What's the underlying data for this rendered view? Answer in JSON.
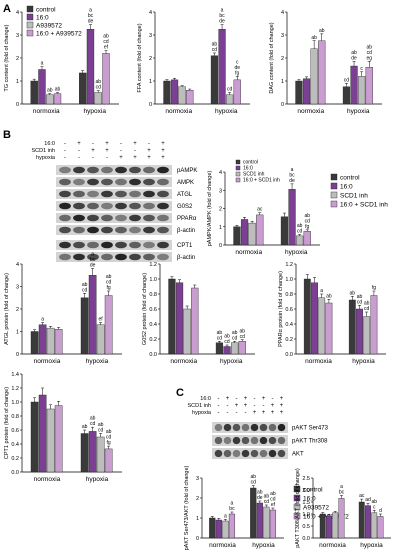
{
  "panels": {
    "a": "A",
    "b": "B",
    "c": "C"
  },
  "colors": {
    "control": "#3a3a3a",
    "palm": "#7b3f93",
    "a939572": "#bdbdbd",
    "combo": "#c99dd0"
  },
  "legend_a": [
    "control",
    "16:0",
    "A939572",
    "16:0 + A939572"
  ],
  "legend_b": [
    "control",
    "16:0",
    "SCD1 inh",
    "16:0 + SCD1 inh"
  ],
  "blot_b": {
    "conditions": [
      {
        "label": "16:0",
        "signs": [
          "-",
          "+",
          "-",
          "+",
          "-",
          "+",
          "-",
          "+"
        ]
      },
      {
        "label": "SCD1 inh",
        "signs": [
          "-",
          "-",
          "+",
          "+",
          "-",
          "-",
          "+",
          "+"
        ]
      },
      {
        "label": "hypoxia",
        "signs": [
          "-",
          "-",
          "-",
          "-",
          "+",
          "+",
          "+",
          "+"
        ]
      }
    ],
    "bands": [
      "pAMPK",
      "AMPK",
      "ATGL",
      "G0S2",
      "PPARα",
      "β-actin",
      "CPT1",
      "β-actin"
    ]
  },
  "blot_c": {
    "conditions": [
      {
        "label": "16:0",
        "signs": [
          "-",
          "+",
          "-",
          "+",
          "-",
          "+",
          "-",
          "+"
        ]
      },
      {
        "label": "SCD1 inh",
        "signs": [
          "-",
          "-",
          "+",
          "+",
          "-",
          "-",
          "+",
          "+"
        ]
      },
      {
        "label": "hypoxia",
        "signs": [
          "-",
          "-",
          "-",
          "-",
          "+",
          "+",
          "+",
          "+"
        ]
      }
    ],
    "bands": [
      "pAKT Ser473",
      "pAKT Thr308",
      "AKT"
    ]
  },
  "chart_data": [
    {
      "id": "tg",
      "type": "bar",
      "categories": [
        "normoxia",
        "hypoxia"
      ],
      "ylabel": "TG content (fold of change)",
      "ylim": [
        0,
        4
      ],
      "yticks": [
        0,
        1,
        2,
        3,
        4
      ],
      "series": [
        {
          "name": "control",
          "values": [
            1.0,
            1.35
          ],
          "err": [
            0.08,
            0.1
          ]
        },
        {
          "name": "16:0",
          "values": [
            1.5,
            3.25
          ],
          "err": [
            0.12,
            0.2
          ]
        },
        {
          "name": "A939572",
          "values": [
            0.4,
            0.5
          ],
          "err": [
            0.05,
            0.08
          ]
        },
        {
          "name": "16:0 + A939572",
          "values": [
            0.45,
            2.2
          ],
          "err": [
            0.05,
            0.12
          ]
        }
      ],
      "annotations": [
        [
          "",
          ""
        ],
        [
          "a",
          "a bc de"
        ],
        [
          "ab",
          "ab cd"
        ],
        [
          "ab",
          "ab cd ef"
        ]
      ]
    },
    {
      "id": "ffa",
      "type": "bar",
      "categories": [
        "normoxia",
        "hypoxia"
      ],
      "ylabel": "FFA content (fold of change)",
      "ylim": [
        0,
        4
      ],
      "yticks": [
        0,
        1,
        2,
        3,
        4
      ],
      "series": [
        {
          "name": "control",
          "values": [
            1.0,
            2.1
          ],
          "err": [
            0.06,
            0.12
          ]
        },
        {
          "name": "16:0",
          "values": [
            1.05,
            3.25
          ],
          "err": [
            0.07,
            0.2
          ]
        },
        {
          "name": "A939572",
          "values": [
            0.75,
            0.4
          ],
          "err": [
            0.05,
            0.1
          ]
        },
        {
          "name": "16:0 + A939572",
          "values": [
            0.6,
            1.05
          ],
          "err": [
            0.05,
            0.15
          ]
        }
      ],
      "annotations": [
        [
          "",
          "ab cd"
        ],
        [
          "",
          "a bc de"
        ],
        [
          "",
          "cd"
        ],
        [
          "",
          "c de fg"
        ]
      ]
    },
    {
      "id": "dag",
      "type": "bar",
      "categories": [
        "normoxia",
        "hypoxia"
      ],
      "ylabel": "DAG content (fold of change)",
      "ylim": [
        0,
        4
      ],
      "yticks": [
        0,
        1,
        2,
        3,
        4
      ],
      "series": [
        {
          "name": "control",
          "values": [
            1.0,
            0.75
          ],
          "err": [
            0.06,
            0.15
          ]
        },
        {
          "name": "16:0",
          "values": [
            1.1,
            1.65
          ],
          "err": [
            0.08,
            0.2
          ]
        },
        {
          "name": "A939572",
          "values": [
            2.4,
            1.2
          ],
          "err": [
            0.35,
            0.2
          ]
        },
        {
          "name": "16:0 + A939572",
          "values": [
            2.75,
            1.6
          ],
          "err": [
            0.3,
            0.25
          ]
        }
      ],
      "annotations": [
        [
          "",
          "cd"
        ],
        [
          "",
          "ab de"
        ],
        [
          "ab",
          "c"
        ],
        [
          "ab",
          "ab cd eg"
        ]
      ]
    },
    {
      "id": "pampk",
      "type": "bar",
      "categories": [
        "normoxia",
        "hypoxia"
      ],
      "ylabel": "pAMPK/AMPK (fold of change)",
      "ylim": [
        0,
        4
      ],
      "yticks": [
        0,
        1,
        2,
        3,
        4
      ],
      "series": [
        {
          "name": "control",
          "values": [
            1.0,
            1.55
          ],
          "err": [
            0.08,
            0.2
          ]
        },
        {
          "name": "16:0",
          "values": [
            1.4,
            3.05
          ],
          "err": [
            0.12,
            0.3
          ]
        },
        {
          "name": "SCD1 inh",
          "values": [
            1.2,
            0.5
          ],
          "err": [
            0.1,
            0.08
          ]
        },
        {
          "name": "16:0 + SCD1 inh",
          "values": [
            1.65,
            0.75
          ],
          "err": [
            0.12,
            0.08
          ]
        }
      ],
      "annotations": [
        [
          "",
          ""
        ],
        [
          "",
          "a bc de"
        ],
        [
          "",
          "ab cd"
        ],
        [
          "ac",
          "ab cd fg"
        ]
      ]
    },
    {
      "id": "atgl",
      "type": "bar",
      "categories": [
        "normoxia",
        "hypoxia"
      ],
      "ylabel": "ATGL protein (fold of change)",
      "ylim": [
        0,
        4
      ],
      "yticks": [
        0,
        1,
        2,
        3,
        4
      ],
      "series": [
        {
          "name": "control",
          "values": [
            1.0,
            2.5
          ],
          "err": [
            0.08,
            0.2
          ]
        },
        {
          "name": "16:0",
          "values": [
            1.3,
            3.5
          ],
          "err": [
            0.1,
            0.3
          ]
        },
        {
          "name": "SCD1 inh",
          "values": [
            1.15,
            1.3
          ],
          "err": [
            0.08,
            0.1
          ]
        },
        {
          "name": "16:0 + SCD1 inh",
          "values": [
            1.1,
            2.6
          ],
          "err": [
            0.08,
            0.2
          ]
        }
      ],
      "annotations": [
        [
          "",
          "ab cd"
        ],
        [
          "a",
          "a bc de"
        ],
        [
          "",
          "ef"
        ],
        [
          "",
          "ab cd fg"
        ]
      ]
    },
    {
      "id": "g0s2",
      "type": "bar",
      "categories": [
        "normoxia",
        "hypoxia"
      ],
      "ylabel": "G0S2 protein (fold of change)",
      "ylim": [
        0,
        1.2
      ],
      "yticks": [
        0,
        0.2,
        0.4,
        0.6,
        0.8,
        1.0,
        1.2
      ],
      "series": [
        {
          "name": "control",
          "values": [
            1.0,
            0.15
          ],
          "err": [
            0.03,
            0.02
          ]
        },
        {
          "name": "16:0",
          "values": [
            0.95,
            0.1
          ],
          "err": [
            0.04,
            0.02
          ]
        },
        {
          "name": "SCD1 inh",
          "values": [
            0.6,
            0.15
          ],
          "err": [
            0.04,
            0.02
          ]
        },
        {
          "name": "16:0 + SCD1 inh",
          "values": [
            0.88,
            0.17
          ],
          "err": [
            0.04,
            0.02
          ]
        }
      ],
      "annotations": [
        [
          "",
          "ab cd"
        ],
        [
          "",
          "ab cd"
        ],
        [
          "",
          "ab cd"
        ],
        [
          "",
          "ab cd"
        ]
      ]
    },
    {
      "id": "ppar",
      "type": "bar",
      "categories": [
        "normoxia",
        "hypoxia"
      ],
      "ylabel": "PPARα protein (fold of change)",
      "ylim": [
        0,
        1.2
      ],
      "yticks": [
        0,
        0.2,
        0.4,
        0.6,
        0.8,
        1.0,
        1.2
      ],
      "series": [
        {
          "name": "control",
          "values": [
            1.0,
            0.72
          ],
          "err": [
            0.06,
            0.05
          ]
        },
        {
          "name": "16:0",
          "values": [
            0.95,
            0.6
          ],
          "err": [
            0.07,
            0.05
          ]
        },
        {
          "name": "SCD1 inh",
          "values": [
            0.75,
            0.5
          ],
          "err": [
            0.05,
            0.06
          ]
        },
        {
          "name": "16:0 + SCD1 inh",
          "values": [
            0.68,
            0.78
          ],
          "err": [
            0.05,
            0.06
          ]
        }
      ],
      "annotations": [
        [
          "",
          "ab"
        ],
        [
          "",
          "ab cd"
        ],
        [
          "a",
          "ab cd"
        ],
        [
          "ab",
          "fg"
        ]
      ]
    },
    {
      "id": "cpt1",
      "type": "bar",
      "categories": [
        "normoxia",
        "hypoxia"
      ],
      "ylabel": "CPT1 protein (fold of change)",
      "ylim": [
        0,
        1.4
      ],
      "yticks": [
        0,
        0.2,
        0.4,
        0.6,
        0.8,
        1.0,
        1.2,
        1.4
      ],
      "series": [
        {
          "name": "control",
          "values": [
            1.0,
            0.55
          ],
          "err": [
            0.06,
            0.05
          ]
        },
        {
          "name": "16:0",
          "values": [
            1.1,
            0.58
          ],
          "err": [
            0.1,
            0.06
          ]
        },
        {
          "name": "SCD1 inh",
          "values": [
            0.9,
            0.5
          ],
          "err": [
            0.06,
            0.05
          ]
        },
        {
          "name": "16:0 + SCD1 inh",
          "values": [
            0.95,
            0.33
          ],
          "err": [
            0.06,
            0.04
          ]
        }
      ],
      "annotations": [
        [
          "",
          "ab"
        ],
        [
          "",
          "ab cd"
        ],
        [
          "",
          "ab cd"
        ],
        [
          "",
          "ab cd fg"
        ]
      ]
    },
    {
      "id": "ser473",
      "type": "bar",
      "categories": [
        "normoxia",
        "hypoxia"
      ],
      "ylabel": "pAKT Ser473/AKT (fold of change)",
      "ylim": [
        0,
        3
      ],
      "yticks": [
        0,
        1,
        2,
        3
      ],
      "series": [
        {
          "name": "control",
          "values": [
            1.0,
            2.5
          ],
          "err": [
            0.08,
            0.12
          ]
        },
        {
          "name": "16:0",
          "values": [
            0.9,
            1.75
          ],
          "err": [
            0.08,
            0.1
          ]
        },
        {
          "name": "A939572",
          "values": [
            0.85,
            1.55
          ],
          "err": [
            0.08,
            0.1
          ]
        },
        {
          "name": "16:0 + A939572",
          "values": [
            1.2,
            1.4
          ],
          "err": [
            0.1,
            0.1
          ]
        }
      ],
      "annotations": [
        [
          "",
          "ab cd"
        ],
        [
          "",
          "ab de"
        ],
        [
          "a",
          "ab cd"
        ],
        [
          "a bc",
          "ab cd ef"
        ]
      ]
    },
    {
      "id": "thr308",
      "type": "bar",
      "categories": [
        "normoxia",
        "hypoxia"
      ],
      "ylabel": "pAKT T308/AKT (fold of change)",
      "ylim": [
        0,
        2.5
      ],
      "yticks": [
        0,
        0.5,
        1.0,
        1.5,
        2.0,
        2.5
      ],
      "series": [
        {
          "name": "control",
          "values": [
            1.0,
            1.5
          ],
          "err": [
            0.06,
            0.12
          ]
        },
        {
          "name": "16:0",
          "values": [
            0.92,
            1.35
          ],
          "err": [
            0.06,
            0.1
          ]
        },
        {
          "name": "A939572",
          "values": [
            1.05,
            1.05
          ],
          "err": [
            0.06,
            0.1
          ]
        },
        {
          "name": "16:0 + A939572",
          "values": [
            1.65,
            0.9
          ],
          "err": [
            0.12,
            0.1
          ]
        }
      ],
      "annotations": [
        [
          "",
          "ac"
        ],
        [
          "",
          "ad"
        ],
        [
          "",
          "ab c"
        ],
        [
          "a bc",
          "d"
        ]
      ]
    }
  ]
}
